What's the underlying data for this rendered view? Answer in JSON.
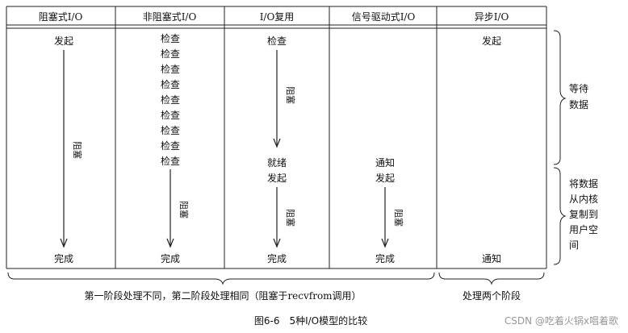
{
  "headers": [
    "阻塞式I/O",
    "非阻塞式I/O",
    "I/O复用",
    "信号驱动式I/O",
    "异步I/O"
  ],
  "models": {
    "blocking": {
      "start": "发起",
      "block": "阻塞",
      "end": "完成"
    },
    "nonblocking": {
      "checks": [
        "检查",
        "检查",
        "检查",
        "检查",
        "检查",
        "检查",
        "检查",
        "检查",
        "检查"
      ],
      "block": "阻塞",
      "end": "完成"
    },
    "multiplexing": {
      "check": "检查",
      "block1": "阻塞",
      "ready": "就绪",
      "start": "发起",
      "block2": "阻塞",
      "end": "完成"
    },
    "signal": {
      "notify": "通知",
      "start": "发起",
      "block": "阻塞",
      "end": "完成"
    },
    "async": {
      "start": "发起",
      "notify": "通知"
    }
  },
  "phases": {
    "wait": [
      "等待",
      "数据"
    ],
    "copy": [
      "将数据",
      "从内核",
      "复制到",
      "用户空",
      "间"
    ]
  },
  "bottom": {
    "left": "第一阶段处理不同，第二阶段处理相同（阻塞于recvfrom调用）",
    "right": "处理两个阶段"
  },
  "caption": "图6-6　5种I/O模型的比较",
  "watermark": "CSDN @吃着火锅x唱着歌"
}
